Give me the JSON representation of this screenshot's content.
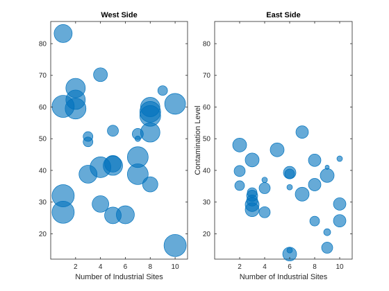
{
  "chart_data": [
    {
      "type": "scatter",
      "title": "West Side",
      "xlabel": "Number of Industrial Sites",
      "ylabel": "",
      "xlim": [
        0,
        11
      ],
      "ylim": [
        12,
        87
      ],
      "xticks": [
        2,
        4,
        6,
        8,
        10
      ],
      "yticks": [
        20,
        30,
        40,
        50,
        60,
        70,
        80
      ],
      "color": "#0072BD",
      "points": [
        {
          "x": 1,
          "y": 83.2,
          "size": 13
        },
        {
          "x": 1,
          "y": 60.2,
          "size": 16
        },
        {
          "x": 1,
          "y": 32.0,
          "size": 16
        },
        {
          "x": 1,
          "y": 26.8,
          "size": 16
        },
        {
          "x": 2,
          "y": 66.0,
          "size": 14
        },
        {
          "x": 2,
          "y": 62.3,
          "size": 14
        },
        {
          "x": 2,
          "y": 59.5,
          "size": 15
        },
        {
          "x": 3,
          "y": 50.7,
          "size": 7
        },
        {
          "x": 3,
          "y": 49.0,
          "size": 7
        },
        {
          "x": 3,
          "y": 38.8,
          "size": 13
        },
        {
          "x": 4,
          "y": 70.2,
          "size": 10
        },
        {
          "x": 4,
          "y": 41.0,
          "size": 15
        },
        {
          "x": 4,
          "y": 29.4,
          "size": 12
        },
        {
          "x": 5,
          "y": 52.5,
          "size": 8
        },
        {
          "x": 5,
          "y": 42.1,
          "size": 12
        },
        {
          "x": 5,
          "y": 41.5,
          "size": 14
        },
        {
          "x": 5,
          "y": 25.8,
          "size": 12
        },
        {
          "x": 6,
          "y": 26.0,
          "size": 13
        },
        {
          "x": 7,
          "y": 51.5,
          "size": 8
        },
        {
          "x": 7,
          "y": 50.0,
          "size": 4
        },
        {
          "x": 7,
          "y": 44.2,
          "size": 15
        },
        {
          "x": 7,
          "y": 38.8,
          "size": 15
        },
        {
          "x": 8,
          "y": 60.0,
          "size": 14
        },
        {
          "x": 8,
          "y": 58.5,
          "size": 15
        },
        {
          "x": 8,
          "y": 57.2,
          "size": 15
        },
        {
          "x": 8,
          "y": 52.0,
          "size": 14
        },
        {
          "x": 8,
          "y": 35.6,
          "size": 11
        },
        {
          "x": 9,
          "y": 65.2,
          "size": 7
        },
        {
          "x": 10,
          "y": 61.0,
          "size": 15
        },
        {
          "x": 10,
          "y": 16.3,
          "size": 16
        }
      ]
    },
    {
      "type": "scatter",
      "title": "East Side",
      "xlabel": "Number of Industrial Sites",
      "ylabel": "Contamination Level",
      "xlim": [
        0,
        11
      ],
      "ylim": [
        12,
        87
      ],
      "xticks": [
        2,
        4,
        6,
        8,
        10
      ],
      "yticks": [
        20,
        30,
        40,
        50,
        60,
        70,
        80
      ],
      "color": "#0072BD",
      "points": [
        {
          "x": 2,
          "y": 48.0,
          "size": 10
        },
        {
          "x": 2,
          "y": 39.8,
          "size": 8
        },
        {
          "x": 2,
          "y": 35.2,
          "size": 7
        },
        {
          "x": 3,
          "y": 43.3,
          "size": 10
        },
        {
          "x": 3,
          "y": 33.0,
          "size": 7
        },
        {
          "x": 3,
          "y": 32.0,
          "size": 8
        },
        {
          "x": 3,
          "y": 30.5,
          "size": 8
        },
        {
          "x": 3,
          "y": 29.2,
          "size": 10
        },
        {
          "x": 3,
          "y": 27.6,
          "size": 10
        },
        {
          "x": 4,
          "y": 37.0,
          "size": 4
        },
        {
          "x": 4,
          "y": 34.4,
          "size": 8
        },
        {
          "x": 4,
          "y": 26.8,
          "size": 8
        },
        {
          "x": 5,
          "y": 46.5,
          "size": 10
        },
        {
          "x": 6,
          "y": 39.3,
          "size": 9
        },
        {
          "x": 6,
          "y": 38.9,
          "size": 7
        },
        {
          "x": 6,
          "y": 34.7,
          "size": 4
        },
        {
          "x": 6,
          "y": 14.8,
          "size": 4
        },
        {
          "x": 6,
          "y": 13.6,
          "size": 10
        },
        {
          "x": 7,
          "y": 52.1,
          "size": 9
        },
        {
          "x": 7,
          "y": 32.5,
          "size": 10
        },
        {
          "x": 8,
          "y": 43.2,
          "size": 9
        },
        {
          "x": 8,
          "y": 35.5,
          "size": 9
        },
        {
          "x": 8,
          "y": 24.0,
          "size": 7
        },
        {
          "x": 9,
          "y": 41.0,
          "size": 3
        },
        {
          "x": 9,
          "y": 38.4,
          "size": 10
        },
        {
          "x": 9,
          "y": 20.5,
          "size": 5
        },
        {
          "x": 9,
          "y": 15.6,
          "size": 8
        },
        {
          "x": 10,
          "y": 43.7,
          "size": 4
        },
        {
          "x": 10,
          "y": 29.4,
          "size": 9
        },
        {
          "x": 10,
          "y": 24.1,
          "size": 9
        }
      ]
    }
  ]
}
